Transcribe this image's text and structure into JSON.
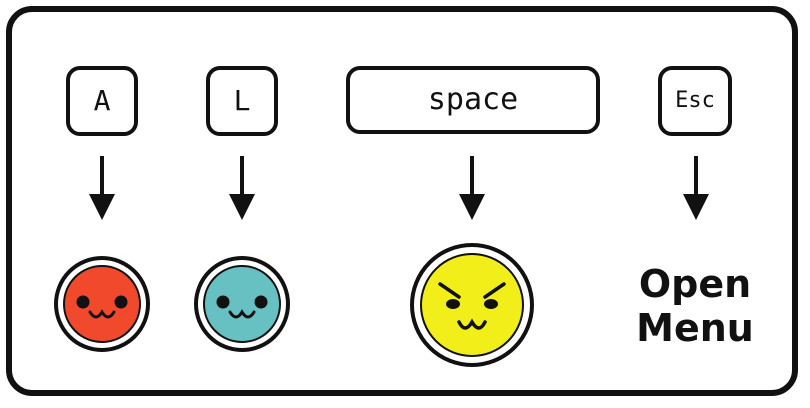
{
  "keys": [
    {
      "id": "a",
      "label": "A",
      "action": "red-face"
    },
    {
      "id": "l",
      "label": "L",
      "action": "blue-face"
    },
    {
      "id": "space",
      "label": "space",
      "action": "yellow-face"
    },
    {
      "id": "esc",
      "label": "Esc",
      "action": "open-menu"
    }
  ],
  "menu": {
    "line1": "Open",
    "line2": "Menu"
  },
  "colors": {
    "outline": "#111111",
    "red_face": "#f0492b",
    "blue_face": "#67c0c2",
    "yellow_face": "#f2ee19",
    "background": "#ffffff"
  },
  "icons": {
    "arrow": "down-arrow-icon",
    "red": "red-smiley-icon",
    "blue": "blue-smiley-icon",
    "yellow": "yellow-angry-smiley-icon"
  }
}
